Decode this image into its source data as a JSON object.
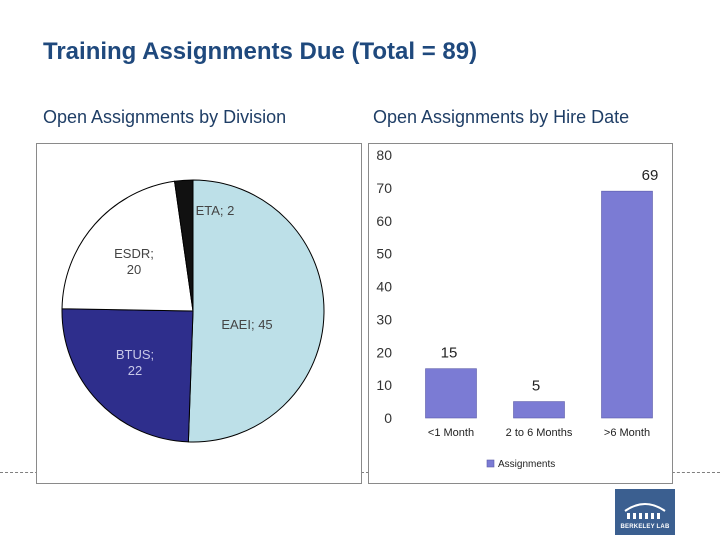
{
  "slide": {
    "title": "Training Assignments Due (Total = 89)",
    "subtitle_left": "Open Assignments by Division",
    "subtitle_right": "Open Assignments by Hire Date"
  },
  "logo": {
    "text": "BERKELEY LAB"
  },
  "colors": {
    "title": "#1F497D",
    "bar": "#7B7BD4",
    "pie": [
      "#BDE0E8",
      "#2E2E8C",
      "#FFFFFF",
      "#111111"
    ]
  },
  "chart_data": [
    {
      "type": "pie",
      "title": "Open Assignments by Division",
      "slices": [
        {
          "label": "EAEI; 45",
          "name": "EAEI",
          "value": 45,
          "color": "#BDE0E8"
        },
        {
          "label": "BTUS; 22",
          "name": "BTUS",
          "value": 22,
          "color": "#2E2E8C"
        },
        {
          "label": "ESDR; 20",
          "name": "ESDR",
          "value": 20,
          "color": "#FFFFFF"
        },
        {
          "label": "ETA; 2",
          "name": "ETA",
          "value": 2,
          "color": "#111111"
        }
      ],
      "visible_labels": [
        {
          "lines": [
            "ETA; 2"
          ]
        },
        {
          "lines": [
            "ESDR;",
            "20"
          ]
        },
        {
          "lines": [
            "EAEI; 45"
          ]
        },
        {
          "lines": [
            "BTUS;",
            "22"
          ]
        }
      ]
    },
    {
      "type": "bar",
      "title": "Open Assignments by Hire Date",
      "categories": [
        "<1 Month",
        "2 to 6 Months",
        ">6 Month"
      ],
      "series": [
        {
          "name": "Assignments",
          "values": [
            15,
            5,
            69
          ],
          "labels": [
            "15",
            "5",
            "69"
          ]
        }
      ],
      "ylim": [
        0,
        80
      ],
      "yticks": [
        "0",
        "10",
        "20",
        "30",
        "40",
        "50",
        "60",
        "70",
        "80"
      ],
      "yticks_values": [
        0,
        10,
        20,
        30,
        40,
        50,
        60,
        70,
        80
      ],
      "legend": "bottom"
    }
  ]
}
